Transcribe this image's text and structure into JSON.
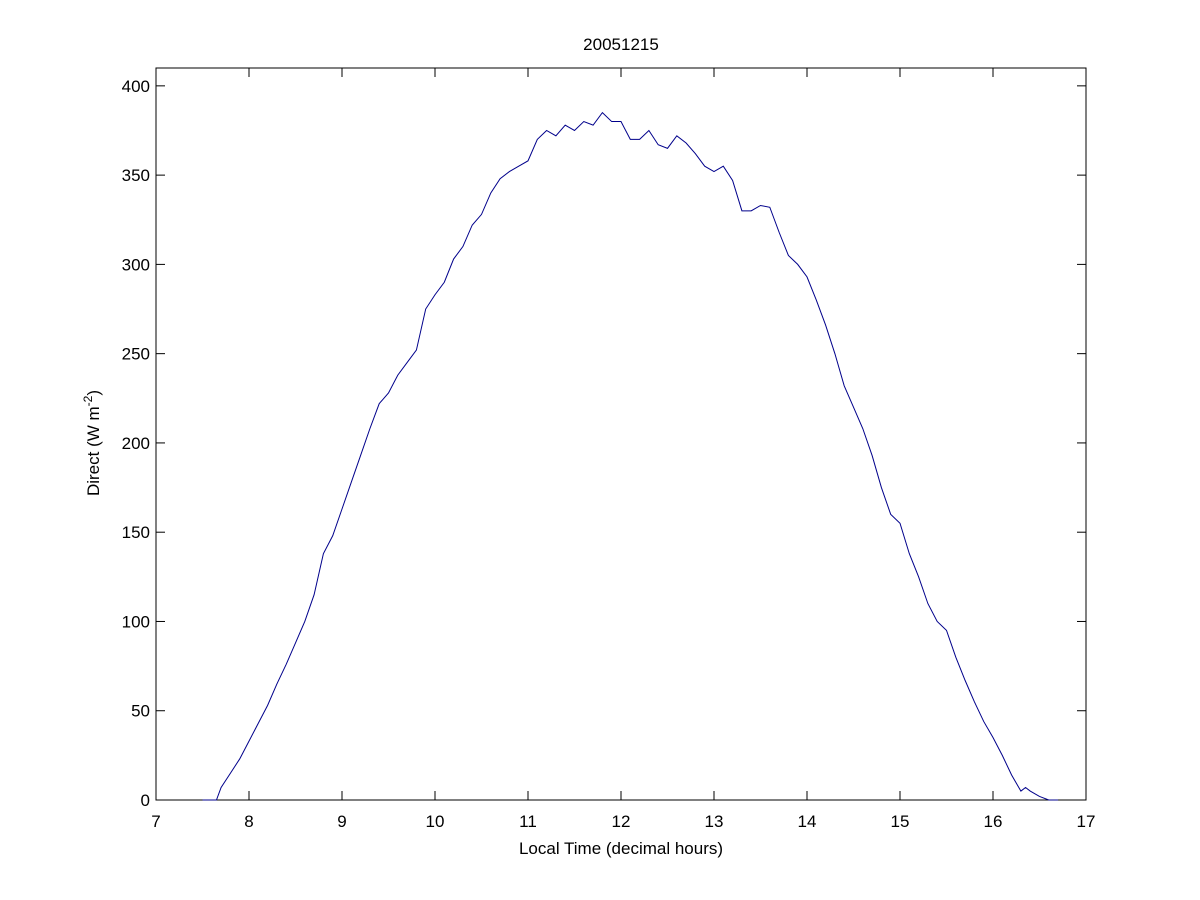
{
  "chart_data": {
    "type": "line",
    "title": "20051215",
    "xlabel": "Local Time (decimal hours)",
    "ylabel": {
      "text": "Direct (W m",
      "sup": "-2",
      "end": ")"
    },
    "x": [
      7.5,
      7.6,
      7.65,
      7.7,
      7.8,
      7.9,
      8.0,
      8.1,
      8.2,
      8.3,
      8.4,
      8.5,
      8.6,
      8.7,
      8.8,
      8.9,
      9.0,
      9.1,
      9.2,
      9.3,
      9.4,
      9.5,
      9.6,
      9.7,
      9.8,
      9.9,
      10.0,
      10.1,
      10.2,
      10.3,
      10.4,
      10.5,
      10.6,
      10.7,
      10.8,
      10.9,
      11.0,
      11.1,
      11.2,
      11.3,
      11.4,
      11.5,
      11.6,
      11.7,
      11.8,
      11.9,
      12.0,
      12.1,
      12.2,
      12.3,
      12.4,
      12.5,
      12.6,
      12.7,
      12.8,
      12.9,
      13.0,
      13.1,
      13.2,
      13.3,
      13.4,
      13.5,
      13.6,
      13.7,
      13.8,
      13.9,
      14.0,
      14.1,
      14.2,
      14.3,
      14.4,
      14.5,
      14.6,
      14.7,
      14.8,
      14.9,
      15.0,
      15.1,
      15.2,
      15.3,
      15.4,
      15.5,
      15.6,
      15.7,
      15.8,
      15.9,
      16.0,
      16.1,
      16.2,
      16.3,
      16.35,
      16.4,
      16.5,
      16.6,
      16.7
    ],
    "series": [
      {
        "name": "Direct",
        "color": "#00008b",
        "values": [
          0,
          0,
          0,
          7,
          15,
          23,
          33,
          43,
          53,
          65,
          76,
          88,
          100,
          115,
          138,
          148,
          163,
          178,
          193,
          208,
          222,
          228,
          238,
          245,
          252,
          275,
          283,
          290,
          303,
          310,
          322,
          328,
          340,
          348,
          352,
          355,
          358,
          370,
          375,
          372,
          378,
          375,
          380,
          378,
          385,
          380,
          380,
          370,
          370,
          375,
          367,
          365,
          372,
          368,
          362,
          355,
          352,
          355,
          347,
          330,
          330,
          333,
          332,
          318,
          305,
          300,
          293,
          280,
          266,
          250,
          232,
          220,
          208,
          193,
          175,
          160,
          155,
          138,
          125,
          110,
          100,
          95,
          80,
          67,
          55,
          44,
          35,
          25,
          14,
          5,
          7,
          5,
          2,
          0,
          0
        ]
      }
    ],
    "xlim": [
      7,
      17
    ],
    "xticks": [
      7,
      8,
      9,
      10,
      11,
      12,
      13,
      14,
      15,
      16,
      17
    ],
    "ylim": [
      0,
      410
    ],
    "yticks": [
      0,
      50,
      100,
      150,
      200,
      250,
      300,
      350,
      400
    ]
  }
}
